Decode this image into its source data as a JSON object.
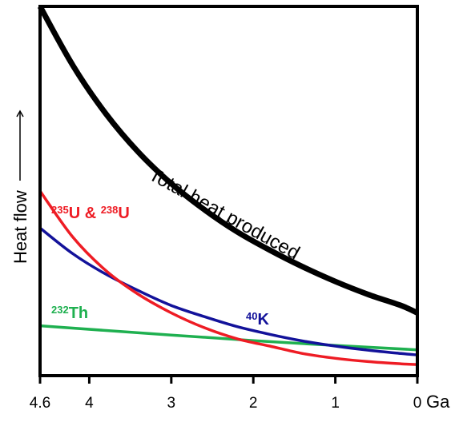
{
  "chart_data": {
    "type": "line",
    "xlabel": "Ga",
    "ylabel": "Heat flow",
    "xlim": [
      4.6,
      0
    ],
    "ylim": [
      0,
      1
    ],
    "x_ticks": [
      {
        "value": 4.6,
        "label": "4.6"
      },
      {
        "value": 4,
        "label": "4"
      },
      {
        "value": 3,
        "label": "3"
      },
      {
        "value": 2,
        "label": "2"
      },
      {
        "value": 1,
        "label": "1"
      },
      {
        "value": 0,
        "label": "0"
      }
    ],
    "grid": false,
    "colors": {
      "total": "#000000",
      "uranium": "#ee1c24",
      "potassium": "#13129a",
      "thorium": "#1fb050"
    },
    "series": [
      {
        "key": "total",
        "name": "Total heat produced",
        "x": [
          4.6,
          4.2,
          3.8,
          3.4,
          3.0,
          2.6,
          2.2,
          1.8,
          1.4,
          1.0,
          0.6,
          0.2,
          0.0
        ],
        "y": [
          1.0,
          0.84,
          0.71,
          0.605,
          0.52,
          0.45,
          0.39,
          0.34,
          0.295,
          0.255,
          0.22,
          0.19,
          0.17
        ]
      },
      {
        "key": "uranium",
        "name_parts": [
          {
            "text": "235",
            "sup": true
          },
          {
            "text": "U & ",
            "sup": false
          },
          {
            "text": "238",
            "sup": true
          },
          {
            "text": "U",
            "sup": false
          }
        ],
        "x": [
          4.6,
          4.2,
          3.8,
          3.4,
          3.0,
          2.6,
          2.2,
          1.8,
          1.4,
          1.0,
          0.6,
          0.2,
          0.0
        ],
        "y": [
          0.5,
          0.375,
          0.285,
          0.22,
          0.17,
          0.13,
          0.1,
          0.08,
          0.06,
          0.047,
          0.038,
          0.032,
          0.03
        ]
      },
      {
        "key": "potassium",
        "name_parts": [
          {
            "text": "40",
            "sup": true
          },
          {
            "text": "K",
            "sup": false
          }
        ],
        "x": [
          4.6,
          4.2,
          3.8,
          3.4,
          3.0,
          2.6,
          2.2,
          1.8,
          1.4,
          1.0,
          0.6,
          0.2,
          0.0
        ],
        "y": [
          0.4,
          0.33,
          0.275,
          0.23,
          0.19,
          0.16,
          0.133,
          0.112,
          0.094,
          0.08,
          0.069,
          0.06,
          0.056
        ]
      },
      {
        "key": "thorium",
        "name_parts": [
          {
            "text": "232",
            "sup": true
          },
          {
            "text": "Th",
            "sup": false
          }
        ],
        "x": [
          4.6,
          3.0,
          1.5,
          0.0
        ],
        "y": [
          0.135,
          0.11,
          0.088,
          0.07
        ]
      }
    ]
  }
}
